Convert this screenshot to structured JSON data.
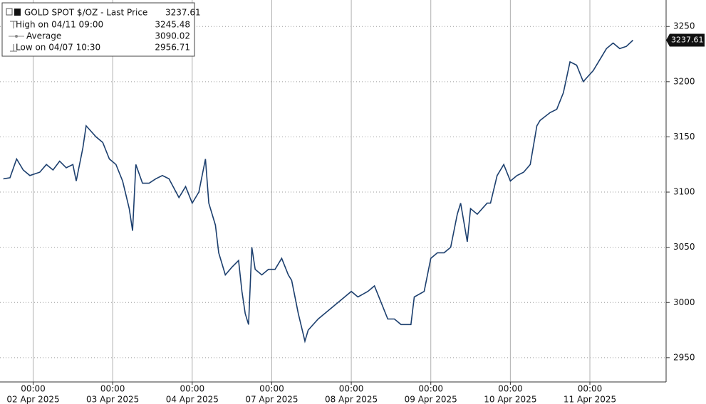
{
  "chart_data": {
    "type": "line",
    "legend": {
      "title": "GOLD SPOT $/OZ - Last Price",
      "last": "3237.61",
      "rows": [
        {
          "label": "High on 04/11 09:00",
          "value": "3245.48"
        },
        {
          "label": "Average",
          "value": "3090.02"
        },
        {
          "label": "Low on 04/07 10:30",
          "value": "2956.71"
        }
      ]
    },
    "series": [
      {
        "name": "GOLD SPOT $/OZ",
        "color": "#1c3f6e",
        "x": [
          -9,
          -7,
          -5,
          -3,
          -1,
          2,
          4,
          6,
          8,
          10,
          12,
          13,
          15,
          16,
          19,
          21,
          23,
          25,
          27,
          29,
          30,
          31,
          33,
          35,
          37,
          39,
          41,
          44,
          46,
          48,
          50,
          52,
          53,
          55,
          56,
          58,
          60,
          62,
          63,
          64,
          65,
          66,
          67,
          69,
          71,
          73,
          75,
          77,
          78,
          80,
          82,
          83,
          86,
          88,
          90,
          92,
          94,
          96,
          98,
          101,
          103,
          105,
          107,
          109,
          111,
          114,
          115,
          118,
          120,
          122,
          124,
          126,
          128,
          129,
          131,
          132,
          134,
          137,
          138,
          140,
          142,
          144,
          146,
          148,
          150,
          152,
          153,
          156,
          158,
          160,
          162,
          164,
          166,
          169,
          171,
          173,
          175,
          177,
          179,
          181
        ],
        "values": [
          3112,
          3113,
          3130,
          3120,
          3115,
          3118,
          3125,
          3120,
          3128,
          3122,
          3125,
          3110,
          3140,
          3160,
          3150,
          3145,
          3130,
          3125,
          3110,
          3085,
          3065,
          3125,
          3108,
          3108,
          3112,
          3115,
          3112,
          3095,
          3105,
          3090,
          3100,
          3130,
          3090,
          3070,
          3045,
          3025,
          3032,
          3038,
          3010,
          2990,
          2980,
          3050,
          3030,
          3025,
          3030,
          3030,
          3040,
          3025,
          3020,
          2990,
          2965,
          2975,
          2985,
          2990,
          2995,
          3000,
          3005,
          3010,
          3005,
          3010,
          3015,
          3000,
          2985,
          2985,
          2980,
          2980,
          3005,
          3010,
          3040,
          3045,
          3045,
          3050,
          3080,
          3090,
          3055,
          3085,
          3080,
          3090,
          3090,
          3115,
          3125,
          3110,
          3115,
          3118,
          3125,
          3160,
          3165,
          3172,
          3175,
          3190,
          3218,
          3215,
          3200,
          3210,
          3220,
          3230,
          3235,
          3230,
          3232,
          3237.61
        ]
      }
    ],
    "xlim": [
      -10,
      191
    ],
    "xticks": [
      {
        "value": 0,
        "label": "00:00"
      },
      {
        "value": 24,
        "label": "00:00"
      },
      {
        "value": 48,
        "label": "00:00"
      },
      {
        "value": 72,
        "label": "00:00"
      },
      {
        "value": 96,
        "label": "00:00"
      },
      {
        "value": 120,
        "label": "00:00"
      },
      {
        "value": 144,
        "label": "00:00"
      },
      {
        "value": 168,
        "label": "00:00"
      }
    ],
    "xtick_dates": [
      "02 Apr 2025",
      "03 Apr 2025",
      "04 Apr 2025",
      "07 Apr 2025",
      "08 Apr 2025",
      "09 Apr 2025",
      "10 Apr 2025",
      "11 Apr 2025"
    ],
    "ylim": [
      2928,
      3274
    ],
    "yticks": [
      2950,
      3000,
      3050,
      3100,
      3150,
      3200,
      3250
    ],
    "last_value": 3237.61,
    "grid": true
  }
}
